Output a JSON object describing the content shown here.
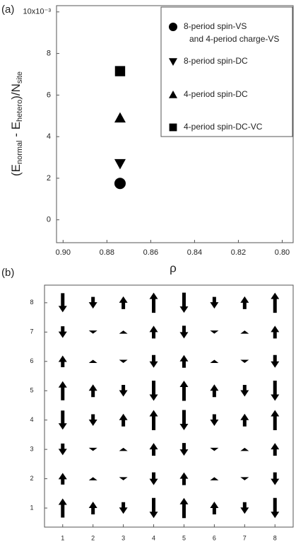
{
  "chart_data": [
    {
      "type": "scatter",
      "panel_label": "(a)",
      "xlabel": "ρ",
      "ylabel": [
        "(E",
        "normal",
        " - E",
        "hetero",
        ")/N",
        "site"
      ],
      "xlim": [
        0.903,
        0.795
      ],
      "xticks": [
        {
          "value": 0.9,
          "label": "0.90"
        },
        0.88,
        0.86,
        0.84,
        0.82,
        {
          "value": 0.8,
          "label": "0.80"
        }
      ],
      "ylim": [
        -1.1,
        10.3
      ],
      "yticks": [
        0,
        2,
        4,
        6,
        8,
        {
          "value": 10,
          "label": "10x10⁻³"
        }
      ],
      "legend": "upper right",
      "series": [
        {
          "name": "8-period spin-VS\nand 4-period charge-VS",
          "marker": "circle",
          "color": "#000000",
          "x": [
            0.874
          ],
          "values": [
            1.75
          ]
        },
        {
          "name": "8-period spin-DC",
          "marker": "triangle-down",
          "color": "#000000",
          "x": [
            0.874
          ],
          "values": [
            2.7
          ]
        },
        {
          "name": "4-period spin-DC",
          "marker": "triangle-up",
          "color": "#000000",
          "x": [
            0.874
          ],
          "values": [
            4.9
          ]
        },
        {
          "name": "4-period spin-DC-VC",
          "marker": "square",
          "color": "#000000",
          "x": [
            0.874
          ],
          "values": [
            7.15
          ]
        }
      ]
    },
    {
      "type": "quiver",
      "panel_label": "(b)",
      "color": "#000000",
      "x": [
        1,
        2,
        3,
        4,
        5,
        6,
        7,
        8
      ],
      "y": [
        1,
        2,
        3,
        4,
        5,
        6,
        7,
        8
      ],
      "xlim": [
        0.4,
        8.6
      ],
      "xticks": [
        1,
        2,
        3,
        4,
        5,
        6,
        7,
        8
      ],
      "ylim": [
        0.35,
        8.6
      ],
      "yticks": [
        1,
        2,
        3,
        4,
        5,
        6,
        7,
        8
      ],
      "values": [
        [
          0.9,
          0.6,
          -0.55,
          -0.95,
          0.95,
          0.6,
          -0.55,
          -0.95
        ],
        [
          0.55,
          0.15,
          -0.15,
          -0.6,
          0.6,
          0.15,
          -0.15,
          -0.6
        ],
        [
          -0.55,
          -0.15,
          0.15,
          0.6,
          -0.6,
          -0.15,
          0.15,
          0.6
        ],
        [
          -0.9,
          -0.55,
          0.6,
          0.95,
          -0.95,
          -0.55,
          0.6,
          0.95
        ],
        [
          0.9,
          0.6,
          -0.55,
          -0.95,
          0.95,
          0.6,
          -0.55,
          -0.95
        ],
        [
          0.55,
          0.15,
          -0.15,
          -0.6,
          0.6,
          0.15,
          -0.15,
          -0.6
        ],
        [
          -0.55,
          -0.15,
          0.15,
          0.6,
          -0.6,
          -0.15,
          0.15,
          0.6
        ],
        [
          -0.9,
          -0.55,
          0.6,
          0.95,
          -0.95,
          -0.55,
          0.6,
          0.95
        ]
      ]
    }
  ]
}
